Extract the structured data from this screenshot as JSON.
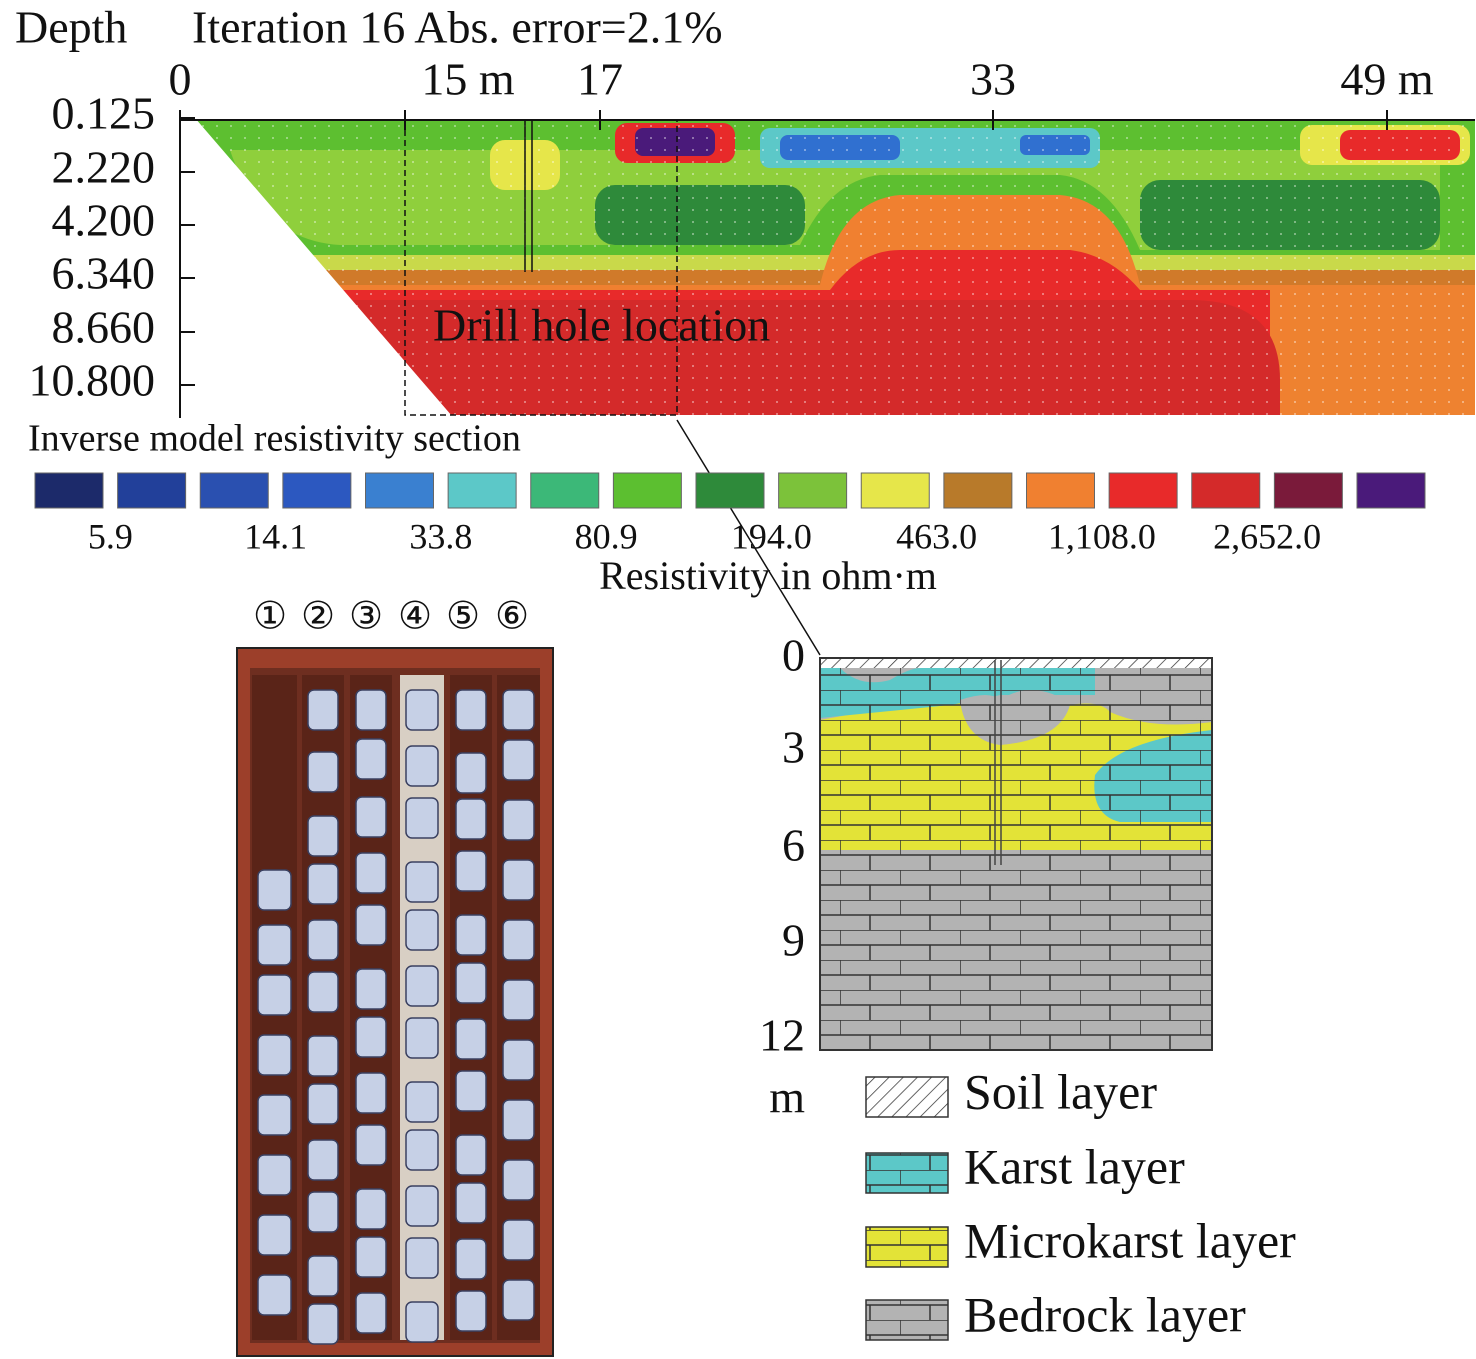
{
  "section": {
    "depth_label": "Depth",
    "title": "Iteration 16 Abs. error=2.1%",
    "x_ticks": [
      "0",
      "15 m",
      "17",
      "33",
      "49 m"
    ],
    "depth_ticks": [
      "0.125",
      "2.220",
      "4.200",
      "6.340",
      "8.660",
      "10.800"
    ],
    "annotation": "Drill hole location",
    "caption": "Inverse model resistivity section"
  },
  "color_scale": {
    "labels": [
      "5.9",
      "14.1",
      "33.8",
      "80.9",
      "194.0",
      "463.0",
      "1,108.0",
      "2,652.0"
    ],
    "title": "Resistivity in ohm·m"
  },
  "core_box": {
    "column_labels": [
      "①",
      "②",
      "③",
      "④",
      "⑤",
      "⑥"
    ]
  },
  "geologic_column": {
    "depth_ticks": [
      "0",
      "3",
      "6",
      "9",
      "12"
    ],
    "unit": "m",
    "legend": [
      "Soil layer",
      "Karst layer",
      "Microkarst layer",
      "Bedrock layer"
    ]
  }
}
